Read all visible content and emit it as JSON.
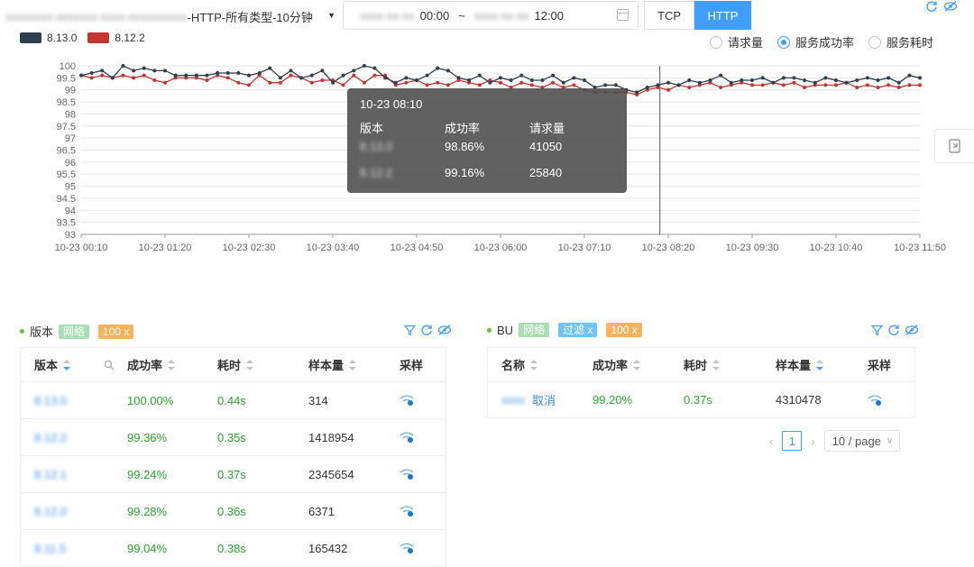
{
  "header": {
    "selector_blurred": "xxxxxxxx-xxxxxxx-xxxx-xxxxxxxxxx",
    "selector_text": "-HTTP-所有类型-10分钟",
    "time_start_blurred": "xxxx-xx-xx",
    "time_start": "00:00",
    "time_sep": "~",
    "time_end_blurred": "xxxx-xx-xx",
    "time_end": "12:00",
    "protocols": [
      "TCP",
      "HTTP"
    ],
    "active_protocol": "HTTP"
  },
  "legend": [
    {
      "label": "8.13.0",
      "color": "#2e3f4d"
    },
    {
      "label": "8.12.2",
      "color": "#c23531"
    }
  ],
  "metrics": {
    "options": [
      "请求量",
      "服务成功率",
      "服务耗时"
    ],
    "selected": "服务成功率"
  },
  "chart_data": {
    "type": "line",
    "ylim": [
      93,
      100
    ],
    "yticks": [
      "100",
      "99.5",
      "99",
      "98.5",
      "98",
      "97.5",
      "97",
      "96.5",
      "96",
      "95.5",
      "95",
      "94.5",
      "94",
      "93.5",
      "93"
    ],
    "xticks": [
      "10-23 00:10",
      "10-23 01:20",
      "10-23 02:30",
      "10-23 03:40",
      "10-23 04:50",
      "10-23 06:00",
      "10-23 07:10",
      "10-23 08:20",
      "10-23 09:30",
      "10-23 10:40",
      "10-23 11:50"
    ],
    "series": [
      {
        "name": "8.13.0",
        "color": "#2e3f4d",
        "values": [
          99.6,
          99.7,
          99.8,
          99.5,
          100,
          99.8,
          99.9,
          99.8,
          99.8,
          99.6,
          99.6,
          99.6,
          99.6,
          99.7,
          99.7,
          99.7,
          99.6,
          99.7,
          99.9,
          99.5,
          99.8,
          99.5,
          99.6,
          99.8,
          99.3,
          99.6,
          99.8,
          100,
          99.9,
          99.5,
          99.3,
          99.5,
          99.4,
          99.6,
          99.9,
          99.8,
          99.5,
          99.4,
          99.6,
          99.3,
          99.5,
          99.4,
          99.6,
          99.4,
          99.4,
          99.6,
          99.3,
          99.5,
          99.4,
          99.1,
          99.2,
          99.2,
          99,
          98.9,
          99.1,
          99.2,
          99.3,
          99.2,
          99.4,
          99.3,
          99.4,
          99.6,
          99.3,
          99.4,
          99.4,
          99.5,
          99.3,
          99.5,
          99.5,
          99.4,
          99.3,
          99.5,
          99.4,
          99.3,
          99.4,
          99.5,
          99.4,
          99.5,
          99.3,
          99.6,
          99.5
        ]
      },
      {
        "name": "8.12.2",
        "color": "#c23531",
        "values": [
          99.6,
          99.5,
          99.6,
          99.5,
          99.6,
          99.5,
          99.6,
          99.4,
          99.3,
          99.5,
          99.5,
          99.5,
          99.4,
          99.6,
          99.5,
          99.3,
          99.2,
          99.6,
          99.3,
          99.3,
          99.6,
          99.5,
          99.3,
          99.4,
          99.4,
          99.2,
          99.6,
          99.3,
          99.6,
          99.6,
          99.2,
          99.3,
          99.4,
          99.2,
          99.3,
          99.2,
          99.4,
          99.3,
          99.2,
          99.4,
          99.3,
          99.1,
          99.3,
          99.2,
          99.1,
          99.3,
          99.1,
          99.2,
          99.0,
          98.9,
          98.9,
          98.9,
          98.9,
          98.8,
          99.0,
          99.1,
          99.0,
          99.2,
          99.1,
          99.2,
          99.3,
          99.1,
          99.2,
          99.3,
          99.2,
          99.2,
          99.3,
          99.2,
          99.3,
          99.1,
          99.2,
          99.2,
          99.2,
          99.3,
          99.1,
          99.2,
          99.1,
          99.2,
          99.1,
          99.2,
          99.2
        ]
      }
    ]
  },
  "tooltip": {
    "time": "10-23 08:10",
    "headers": [
      "版本",
      "成功率",
      "请求量"
    ],
    "rows": [
      {
        "version_blurred": "8.13.0",
        "rate": "98.86%",
        "count": "41050"
      },
      {
        "version_blurred": "8.12.2",
        "rate": "99.16%",
        "count": "25840"
      }
    ]
  },
  "left_panel": {
    "title": "版本",
    "tags": [
      "网络",
      "100 x"
    ],
    "columns": [
      "版本",
      "成功率",
      "耗时",
      "样本量",
      "采样"
    ],
    "rows": [
      {
        "version": "8.13.0",
        "rate": "100.00%",
        "time": "0.44s",
        "samples": "314"
      },
      {
        "version": "8.12.2",
        "rate": "99.36%",
        "time": "0.35s",
        "samples": "1418954"
      },
      {
        "version": "8.12.1",
        "rate": "99.24%",
        "time": "0.37s",
        "samples": "2345654"
      },
      {
        "version": "8.12.0",
        "rate": "99.28%",
        "time": "0.36s",
        "samples": "6371"
      },
      {
        "version": "8.11.5",
        "rate": "99.04%",
        "time": "0.38s",
        "samples": "165432"
      }
    ]
  },
  "right_panel": {
    "title": "BU",
    "tags": [
      "网络",
      "过滤 x",
      "100 x"
    ],
    "columns": [
      "名称",
      "成功率",
      "耗时",
      "样本量",
      "采样"
    ],
    "rows": [
      {
        "name_blurred": "xxxx",
        "name": "取消",
        "rate": "99.20%",
        "time": "0.37s",
        "samples": "4310478"
      }
    ]
  },
  "pagination": {
    "current": "1",
    "page_size": "10 / page"
  }
}
